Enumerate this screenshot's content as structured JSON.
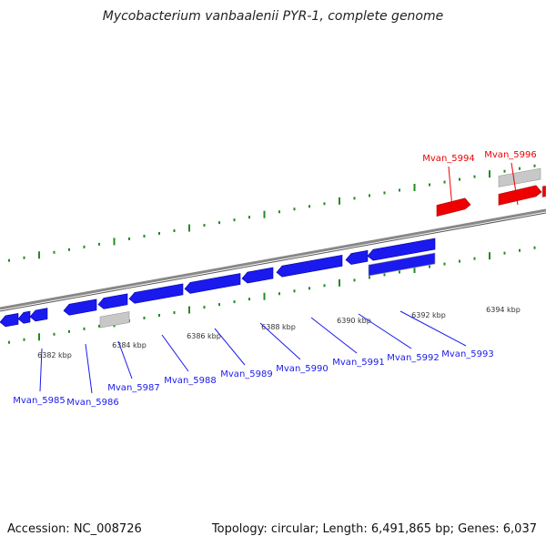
{
  "title": "Mycobacterium vanbaalenii PYR-1, complete genome",
  "accession": "Accession: NC_008726",
  "summary": "Topology: circular; Length: 6,491,865 bp; Genes: 6,037",
  "colors": {
    "forward_gene": "#ee0000",
    "reverse_gene": "#1a1aee",
    "other_feature": "#c8c8c8",
    "backbone": "#888888",
    "tick": "#228b22",
    "forward_label": "#ee0000",
    "reverse_label": "#1a1aee"
  },
  "scale_labels": [
    "6382 kbp",
    "6384 kbp",
    "6386 kbp",
    "6388 kbp",
    "6390 kbp",
    "6392 kbp",
    "6394 kbp"
  ],
  "forward_gene_labels": [
    "Mvan_5994",
    "Mvan_5996"
  ],
  "reverse_gene_labels": [
    "Mvan_5985",
    "Mvan_5986",
    "Mvan_5987",
    "Mvan_5988",
    "Mvan_5989",
    "Mvan_5990",
    "Mvan_5991",
    "Mvan_5992",
    "Mvan_5993"
  ]
}
